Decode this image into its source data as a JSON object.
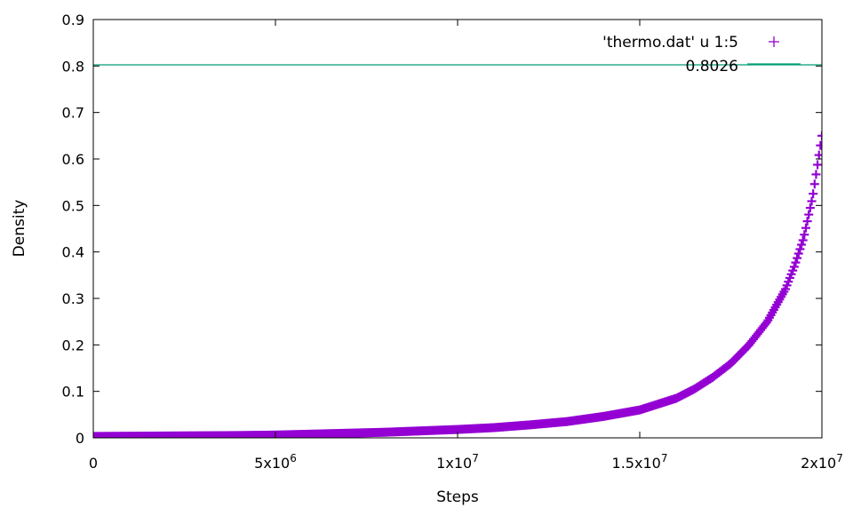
{
  "chart_data": {
    "type": "scatter",
    "xlabel": "Steps",
    "ylabel": "Density",
    "xlim": [
      0,
      20000000
    ],
    "ylim": [
      0,
      0.9
    ],
    "xticks": [
      {
        "value": 0,
        "base": "0",
        "exp": ""
      },
      {
        "value": 5000000,
        "base": "5x10",
        "exp": "6"
      },
      {
        "value": 10000000,
        "base": "1x10",
        "exp": "7"
      },
      {
        "value": 15000000,
        "base": "1.5x10",
        "exp": "7"
      },
      {
        "value": 20000000,
        "base": "2x10",
        "exp": "7"
      }
    ],
    "yticks": [
      {
        "value": 0,
        "label": "0"
      },
      {
        "value": 0.1,
        "label": "0.1"
      },
      {
        "value": 0.2,
        "label": "0.2"
      },
      {
        "value": 0.3,
        "label": "0.3"
      },
      {
        "value": 0.4,
        "label": "0.4"
      },
      {
        "value": 0.5,
        "label": "0.5"
      },
      {
        "value": 0.6,
        "label": "0.6"
      },
      {
        "value": 0.7,
        "label": "0.7"
      },
      {
        "value": 0.8,
        "label": "0.8"
      },
      {
        "value": 0.9,
        "label": "0.9"
      }
    ],
    "grid": false,
    "legend_position": "top-right",
    "series": [
      {
        "name": "'thermo.dat' u 1:5",
        "style": "points",
        "color": "#9400d3",
        "x": [
          0,
          1000000,
          2000000,
          3000000,
          4000000,
          5000000,
          6000000,
          7000000,
          8000000,
          9000000,
          10000000,
          11000000,
          12000000,
          13000000,
          14000000,
          15000000,
          16000000,
          16500000,
          17000000,
          17500000,
          18000000,
          18500000,
          19000000,
          19250000,
          19500000,
          19750000,
          20000000
        ],
        "y": [
          0.003,
          0.0035,
          0.004,
          0.0045,
          0.005,
          0.006,
          0.008,
          0.01,
          0.012,
          0.015,
          0.018,
          0.022,
          0.028,
          0.035,
          0.046,
          0.06,
          0.085,
          0.105,
          0.13,
          0.16,
          0.2,
          0.25,
          0.32,
          0.37,
          0.43,
          0.52,
          0.65
        ]
      },
      {
        "name": "0.8026",
        "style": "line",
        "color": "#009e73",
        "constant": 0.8026
      }
    ]
  }
}
